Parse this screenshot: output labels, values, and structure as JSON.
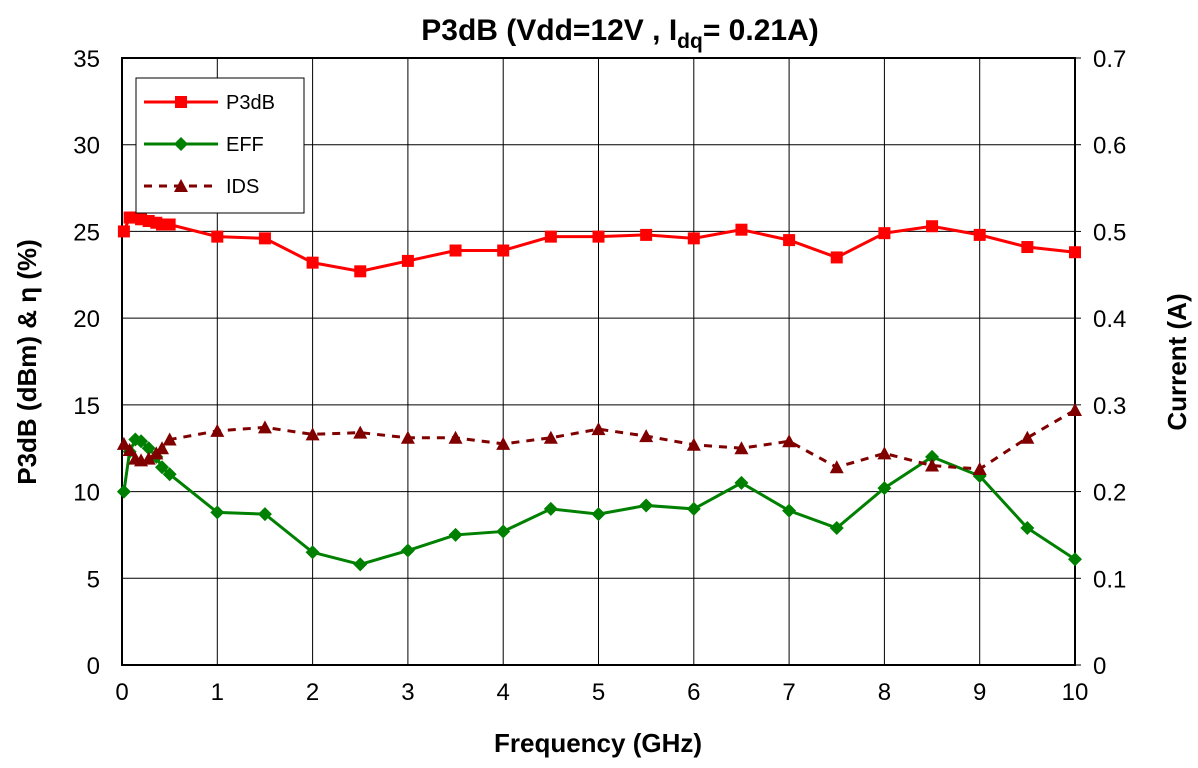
{
  "chart_data": {
    "type": "line",
    "title": [
      "P3dB (Vdd=12V , I",
      "dq",
      "= 0.21A)"
    ],
    "xlabel": "Frequency (GHz)",
    "ylabel": "P3dB (dBm) & η (%)",
    "y2label": "Current (A)",
    "xlim": [
      0,
      10
    ],
    "xticks": [
      0,
      1,
      2,
      3,
      4,
      5,
      6,
      7,
      8,
      9,
      10
    ],
    "ylim": [
      0,
      35
    ],
    "yticks": [
      0,
      5,
      10,
      15,
      20,
      25,
      30,
      35
    ],
    "y2lim": [
      0,
      0.7
    ],
    "y2ticks": [
      0,
      0.1,
      0.2,
      0.3,
      0.4,
      0.5,
      0.6,
      0.7
    ],
    "grid": true,
    "legend": "upper left",
    "x": [
      0.02,
      0.08,
      0.14,
      0.2,
      0.28,
      0.36,
      0.42,
      0.5,
      1,
      1.5,
      2,
      2.5,
      3,
      3.5,
      4,
      4.5,
      5,
      5.5,
      6,
      6.5,
      7,
      7.5,
      8,
      8.5,
      9,
      9.5,
      10
    ],
    "series": [
      {
        "name": "P3dB",
        "color": "#ff0000",
        "marker": "square",
        "dash": false,
        "values": [
          25.0,
          25.8,
          25.8,
          25.7,
          25.6,
          25.5,
          25.4,
          25.4,
          24.7,
          24.6,
          23.2,
          22.7,
          23.3,
          23.9,
          23.9,
          24.7,
          24.7,
          24.8,
          24.6,
          25.1,
          24.5,
          23.5,
          24.9,
          25.3,
          24.8,
          24.1,
          23.8
        ]
      },
      {
        "name": "EFF",
        "color": "#008000",
        "marker": "diamond",
        "dash": false,
        "values": [
          10.0,
          12.3,
          13.0,
          12.9,
          12.5,
          12.0,
          11.4,
          11.0,
          8.8,
          8.7,
          6.5,
          5.8,
          6.6,
          7.5,
          7.7,
          9.0,
          8.7,
          9.2,
          9.0,
          10.5,
          8.9,
          7.9,
          10.2,
          12.0,
          10.9,
          7.9,
          6.1
        ]
      },
      {
        "name": "IDS",
        "color": "#800000",
        "marker": "triangle",
        "dash": true,
        "axis": "y2",
        "values": [
          0.255,
          0.248,
          0.238,
          0.236,
          0.238,
          0.244,
          0.25,
          0.26,
          0.27,
          0.274,
          0.266,
          0.268,
          0.262,
          0.262,
          0.255,
          0.262,
          0.272,
          0.264,
          0.254,
          0.25,
          0.258,
          0.228,
          0.244,
          0.23,
          0.226,
          0.262,
          0.294
        ]
      }
    ]
  }
}
